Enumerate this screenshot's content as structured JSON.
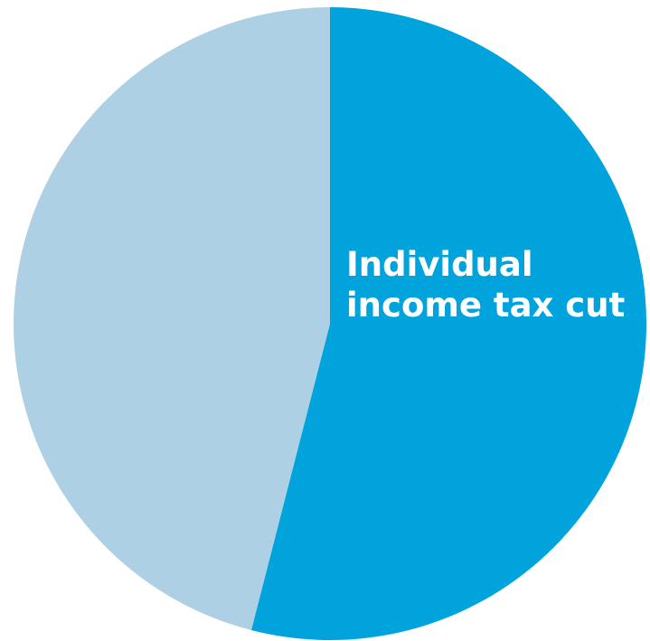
{
  "chart_data": {
    "type": "pie",
    "title": "",
    "start_angle_deg": 0,
    "direction": "clockwise",
    "slices": [
      {
        "label_lines": [
          "Individual",
          "income tax cut"
        ],
        "value": 54,
        "color": "#00a3dc"
      },
      {
        "label_lines": [],
        "value": 46,
        "color": "#add0e4"
      }
    ]
  }
}
